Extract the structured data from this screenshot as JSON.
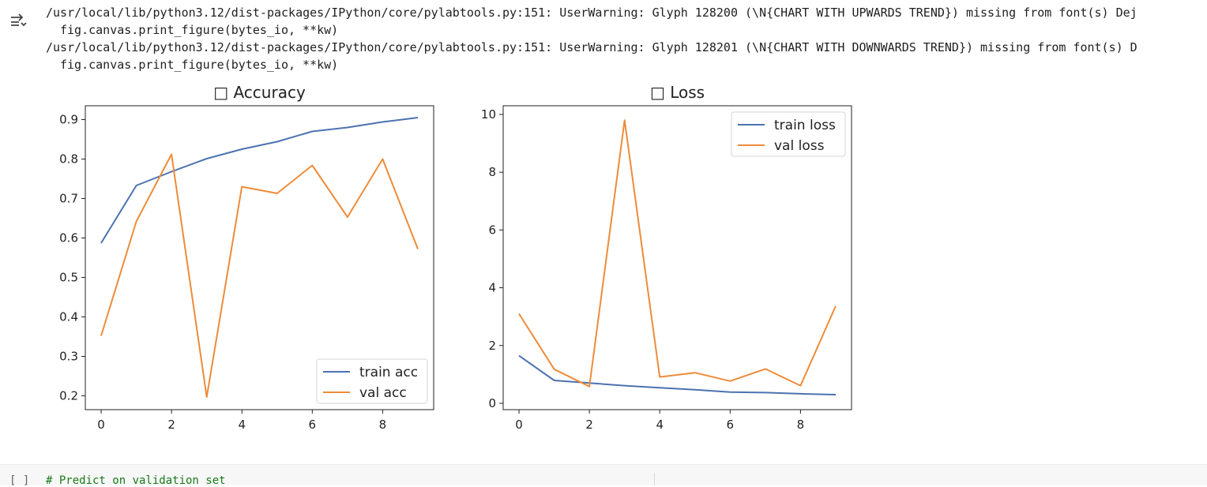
{
  "output": {
    "icon": "output-toggle-icon",
    "warnings": [
      "/usr/local/lib/python3.12/dist-packages/IPython/core/pylabtools.py:151: UserWarning: Glyph 128200 (\\N{CHART WITH UPWARDS TREND}) missing from font(s) Dej",
      "fig.canvas.print_figure(bytes_io, **kw)",
      "/usr/local/lib/python3.12/dist-packages/IPython/core/pylabtools.py:151: UserWarning: Glyph 128201 (\\N{CHART WITH DOWNWARDS TREND}) missing from font(s) D",
      "fig.canvas.print_figure(bytes_io, **kw)"
    ]
  },
  "chart_data": [
    {
      "type": "line",
      "title": "□ Accuracy",
      "xlabel": "",
      "ylabel": "",
      "x": [
        0,
        1,
        2,
        3,
        4,
        5,
        6,
        7,
        8,
        9
      ],
      "xticks": [
        0,
        2,
        4,
        6,
        8
      ],
      "yticks": [
        0.2,
        0.3,
        0.4,
        0.5,
        0.6,
        0.7,
        0.8,
        0.9
      ],
      "xlim": [
        -0.45,
        9.45
      ],
      "ylim": [
        0.165,
        0.935
      ],
      "legend": "lower-right",
      "series": [
        {
          "name": "train acc",
          "color": "#4c72b0",
          "values": [
            0.587,
            0.733,
            0.768,
            0.801,
            0.825,
            0.844,
            0.87,
            0.88,
            0.894,
            0.905
          ]
        },
        {
          "name": "val acc",
          "color": "#ee8b3a",
          "values": [
            0.352,
            0.642,
            0.812,
            0.197,
            0.73,
            0.713,
            0.784,
            0.653,
            0.8,
            0.572
          ]
        }
      ]
    },
    {
      "type": "line",
      "title": "□ Loss",
      "xlabel": "",
      "ylabel": "",
      "x": [
        0,
        1,
        2,
        3,
        4,
        5,
        6,
        7,
        8,
        9
      ],
      "xticks": [
        0,
        2,
        4,
        6,
        8
      ],
      "yticks": [
        0,
        2,
        4,
        6,
        8,
        10
      ],
      "xlim": [
        -0.45,
        9.45
      ],
      "ylim": [
        -0.22,
        10.3
      ],
      "legend": "upper-right",
      "series": [
        {
          "name": "train loss",
          "color": "#4c72b0",
          "values": [
            1.65,
            0.79,
            0.7,
            0.61,
            0.54,
            0.47,
            0.39,
            0.37,
            0.33,
            0.3
          ]
        },
        {
          "name": "val loss",
          "color": "#ee8b3a",
          "values": [
            3.1,
            1.18,
            0.58,
            9.8,
            0.91,
            1.06,
            0.77,
            1.19,
            0.61,
            3.37
          ]
        }
      ]
    }
  ],
  "next_cell": {
    "bracket": "[ ]",
    "code": "# Predict on validation set"
  }
}
